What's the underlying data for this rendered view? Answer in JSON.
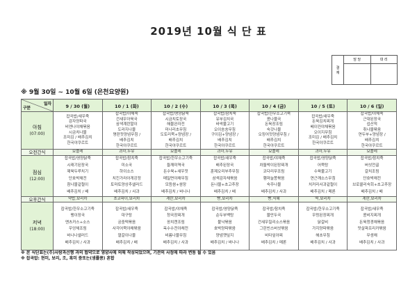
{
  "title": "2019년 10월 식 단 표",
  "approval": {
    "side_label": "결\n재",
    "columns": [
      "담 당",
      "대 리"
    ]
  },
  "subtitle": "※ 9월 30일 ~ 10월 6일 (은천요양원)",
  "header": {
    "corner_top": "일자",
    "corner_bottom": "구분",
    "days": [
      "9 / 30 (월)",
      "10 / 1 (화)",
      "10 / 2 (수)",
      "10 / 3 (목)",
      "10 / 4 (금)",
      "10 / 5 (토)",
      "10 / 6 (일)"
    ]
  },
  "rows": [
    {
      "label": "아침",
      "time": "(07:00)",
      "kind": "bf",
      "cells": [
        [
          "잡곡밥/새우죽",
          "감자양파국",
          "비엔나야채볶음",
          "시금치나물",
          "조미김 / 배추김치",
          "한국야쿠르트"
        ],
        [
          "잡곡밥/야채죽",
          "건새우아욱국",
          "삼색계란말이",
          "도라지나물",
          "명란젓양념무침 /",
          "배추김치",
          "한국야쿠르트"
        ],
        [
          "잡곡밥/영양닭죽",
          "시금치토장국",
          "해물완자전",
          "미나리초무침",
          "도토리묵+양념장 /",
          "배추김치",
          "한국야쿠르트"
        ],
        [
          "잡곡밥/참치죽",
          "유부김치국",
          "바싹불고기",
          "오이송송무침",
          "구이김+양념장 /",
          "배추김치",
          "한국야쿠르트"
        ],
        [
          "잡곡밥/한우소고기죽",
          "콩나물국",
          "돈육장조림",
          "숙갓나물",
          "오징어젓양념무침 /",
          "배추김치",
          "한국야쿠르트"
        ],
        [
          "잡곡밥/새우죽",
          "돈육김치찌개",
          "베이컨야채볶음",
          "오이지무침",
          "조미김 / 배추김치",
          "한국야쿠르트"
        ],
        [
          "잡곡밥/야채죽",
          "근대된장국",
          "섭산적",
          "취나물볶음",
          "연두부+양념장 /",
          "배추김치",
          "한국야쿠르트"
        ]
      ]
    },
    {
      "label": "오전간식",
      "kind": "snack",
      "cells": [
        [
          "요플레"
        ],
        [
          "과자,두유"
        ],
        [
          "요플레"
        ],
        [
          "과자,두유"
        ],
        [
          "요플레"
        ],
        [
          "과자,두유"
        ],
        [
          "요플레"
        ]
      ]
    },
    {
      "label": "점심",
      "time": "(12:00)",
      "kind": "ln",
      "cells": [
        [
          "잡곡밥/영양닭죽",
          "시래기된장국",
          "제육두루치기",
          "단호박채전",
          "참나물겉절이",
          "배추김치 / 배"
        ],
        [
          "잡곡밥/참치죽",
          "미소국",
          "하이소스",
          "치킨가라아게강정",
          "토마토양상추샐러드",
          "배추김치 / 사과"
        ],
        [
          "잡곡밥/한우소고기죽",
          "들깨미역국",
          "돈수육+새우젓",
          "메밀면야채무침",
          "모듬쌈+쌈장",
          "배추김치 / 바나나"
        ],
        [
          "잡곡밥/새우죽",
          "배추된장국",
          "훈제오리부추무침",
          "삼색감자채볶음",
          "돈나물+초고추장",
          "배추김치 / 배"
        ],
        [
          "잡곡밥/야채죽",
          "차돌박이된장찌개",
          "코다리무조림",
          "햄마늘쫑볶음",
          "숙주나물",
          "배추김치 / 사과"
        ],
        [
          "잡곡밥/영양닭죽",
          "어묵탕",
          "수육불고기",
          "연근깨소스무침",
          "치커리사과겉절이",
          "배추김치 / 메론"
        ],
        [
          "잡곡밥/참치죽",
          "버섯전골",
          "갈치조림",
          "단호박채전",
          "브로콜리숙회+초고추장",
          "배추김치 / 배"
        ]
      ]
    },
    {
      "label": "오후간식",
      "kind": "snack",
      "cells": [
        [
          "약밥,보리차"
        ],
        [
          "초코파이,보리차"
        ],
        [
          "계란,보리차"
        ],
        [
          "빵,보리차"
        ],
        [
          "빵,식혜"
        ],
        [
          "떡,보리차"
        ],
        [
          "계란,보리차"
        ]
      ]
    },
    {
      "label": "저녁",
      "time": "(18:00)",
      "kind": "dn",
      "cells": [
        [
          "잡곡밥/한우소고기죽",
          "팽이장국",
          "멘츠카스+소스",
          "우엉채조림",
          "바나나샐러드",
          "배추김치 / 사과"
        ],
        [
          "잡곡밥/새우죽",
          "대구탕",
          "궁중떡볶음",
          "사각어묵야채볶음",
          "열갈이나물",
          "배추김치 / 배"
        ],
        [
          "잡곡밥/야채죽",
          "청국장찌개",
          "꽁치캔조림",
          "옥수수전야채전",
          "비름나물무침",
          "배추김치 / 사과"
        ],
        [
          "잡곡밥/영양닭죽",
          "순두부백탕",
          "불낙볶음",
          "호박양파볶음",
          "양념깻잎지",
          "배추김치 / 바나나"
        ],
        [
          "잡곡밥/참치죽",
          "물만두국",
          "건새우칠리소스볶음",
          "그린빈스버섯볶음",
          "비타잎아찌",
          "배추김치 / 메론"
        ],
        [
          "잡곡밥/한우소고기죽",
          "우렁된장찌개",
          "닭갈비",
          "가지양파볶음",
          "해초무침",
          "배추김치 / 사과"
        ],
        [
          "잡곡밥/새우죽",
          "콩비지찌개",
          "돈육청경채볶음",
          "맛살파프리카볶음",
          "무생채",
          "배추김치 / 사과"
        ]
      ]
    }
  ],
  "notes": [
    "※ 본 식단표는(주)사랑과선행 과의 협약으로 영양사에 의해 작성되었으며, 기관의 사정에 따라 변동 될 수 있음",
    "※ 잡곡밥: 현미, 보리, 조, 흑미 중또는(생률콩) 혼합"
  ],
  "colors": {
    "header_bg": "#e2f3d6",
    "border": "#666666"
  }
}
